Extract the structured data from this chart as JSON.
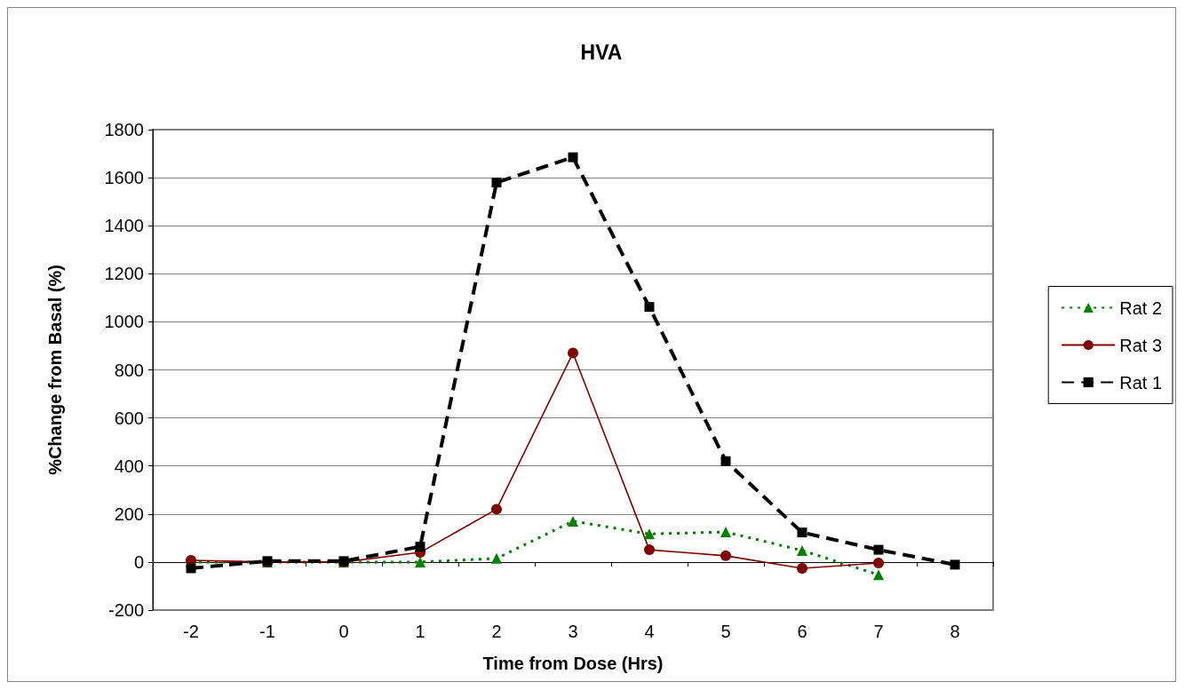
{
  "chart_data": {
    "type": "line",
    "title": "HVA",
    "xlabel": "Time from Dose (Hrs)",
    "ylabel": "%Change from Basal (%)",
    "categories": [
      "-2",
      "-1",
      "0",
      "1",
      "2",
      "3",
      "4",
      "5",
      "6",
      "7",
      "8"
    ],
    "series": [
      {
        "name": "Rat 2",
        "color": "#008000",
        "marker": "triangle",
        "line_style": "dotted",
        "values": [
          0,
          0,
          0,
          0,
          15,
          170,
          117,
          125,
          48,
          -53,
          null
        ]
      },
      {
        "name": "Rat 3",
        "color": "#800000",
        "marker": "circle",
        "line_style": "solid",
        "values": [
          7,
          0,
          0,
          40,
          220,
          870,
          51,
          26,
          -26,
          -4,
          null
        ]
      },
      {
        "name": "Rat 1",
        "color": "#000000",
        "marker": "square",
        "line_style": "dashed",
        "values": [
          -26,
          4,
          4,
          64,
          1580,
          1685,
          1062,
          420,
          123,
          51,
          -11
        ]
      }
    ],
    "ylim": [
      -200,
      1800
    ],
    "yticks": [
      -200,
      0,
      200,
      400,
      600,
      800,
      1000,
      1200,
      1400,
      1600,
      1800
    ],
    "grid": "y",
    "legend": "right"
  }
}
